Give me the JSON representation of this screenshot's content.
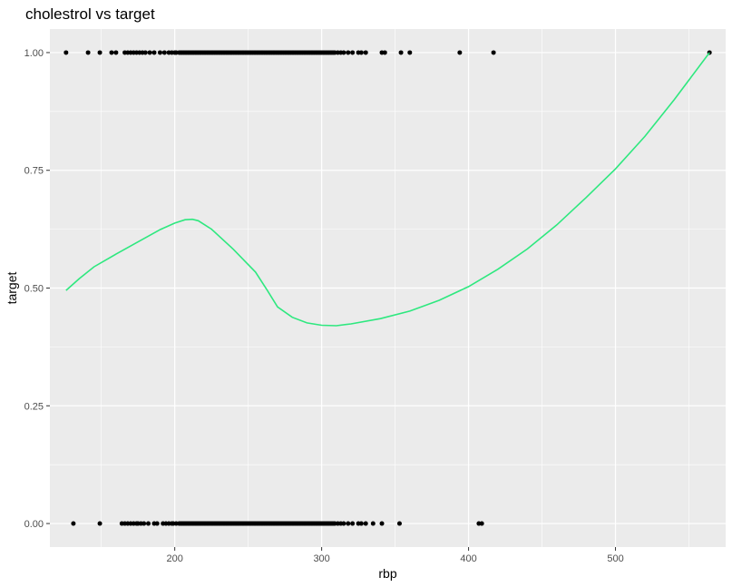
{
  "chart_data": {
    "type": "scatter",
    "title": "cholestrol vs target",
    "xlabel": "rbp",
    "ylabel": "target",
    "xlim": [
      115,
      575
    ],
    "ylim": [
      -0.05,
      1.05
    ],
    "x_ticks": [
      200,
      300,
      400,
      500
    ],
    "x_minor_ticks": [
      150,
      250,
      350,
      450,
      550
    ],
    "y_ticks": [
      0.0,
      0.25,
      0.5,
      0.75,
      1.0
    ],
    "y_tick_labels": [
      "0.00",
      "0.25",
      "0.50",
      "0.75",
      "1.00"
    ],
    "y_minor_ticks": [
      0.125,
      0.375,
      0.625,
      0.875
    ],
    "grid": true,
    "panel_color": "#ebebeb",
    "grid_color": "#ffffff",
    "point_color": "#000000",
    "smooth_color": "#2ee87f",
    "points_target_1": [
      126,
      141,
      149,
      157,
      160,
      166,
      168,
      170,
      172,
      174,
      176,
      178,
      180,
      183,
      186,
      190,
      193,
      196,
      198,
      200,
      201,
      203,
      204,
      205,
      206,
      207,
      208,
      209,
      210,
      211,
      212,
      213,
      214,
      215,
      216,
      217,
      218,
      219,
      220,
      221,
      222,
      223,
      224,
      225,
      226,
      227,
      228,
      229,
      230,
      231,
      232,
      233,
      234,
      235,
      236,
      237,
      238,
      239,
      240,
      241,
      242,
      243,
      244,
      245,
      246,
      247,
      248,
      249,
      250,
      251,
      252,
      253,
      254,
      255,
      256,
      257,
      258,
      259,
      260,
      261,
      262,
      263,
      264,
      265,
      266,
      267,
      268,
      269,
      270,
      271,
      272,
      273,
      274,
      275,
      276,
      277,
      278,
      279,
      280,
      281,
      282,
      283,
      284,
      285,
      286,
      287,
      288,
      289,
      290,
      291,
      292,
      293,
      294,
      295,
      296,
      297,
      298,
      299,
      300,
      301,
      302,
      303,
      304,
      305,
      306,
      307,
      308,
      309,
      311,
      313,
      315,
      318,
      321,
      325,
      327,
      330,
      341,
      343,
      354,
      360,
      394,
      417,
      564
    ],
    "points_target_0": [
      131,
      149,
      164,
      166,
      168,
      170,
      172,
      174,
      175,
      177,
      179,
      182,
      186,
      188,
      192,
      194,
      196,
      198,
      199,
      201,
      203,
      204,
      205,
      206,
      207,
      208,
      209,
      210,
      211,
      212,
      213,
      214,
      215,
      216,
      217,
      218,
      219,
      220,
      221,
      222,
      223,
      224,
      225,
      226,
      227,
      228,
      229,
      230,
      231,
      232,
      233,
      234,
      235,
      236,
      237,
      238,
      239,
      240,
      241,
      242,
      243,
      244,
      245,
      246,
      247,
      248,
      249,
      250,
      251,
      252,
      253,
      254,
      255,
      256,
      257,
      258,
      259,
      260,
      261,
      262,
      263,
      264,
      265,
      266,
      267,
      268,
      269,
      270,
      271,
      272,
      273,
      274,
      275,
      276,
      277,
      278,
      279,
      280,
      281,
      282,
      283,
      284,
      285,
      286,
      287,
      288,
      289,
      290,
      291,
      292,
      293,
      294,
      295,
      296,
      297,
      298,
      299,
      300,
      301,
      302,
      303,
      304,
      305,
      306,
      307,
      308,
      309,
      311,
      313,
      315,
      318,
      321,
      325,
      327,
      330,
      335,
      341,
      353,
      407,
      409
    ],
    "smooth_line": [
      [
        126,
        0.495
      ],
      [
        135,
        0.52
      ],
      [
        145,
        0.545
      ],
      [
        160,
        0.572
      ],
      [
        175,
        0.598
      ],
      [
        190,
        0.624
      ],
      [
        200,
        0.638
      ],
      [
        207,
        0.645
      ],
      [
        212,
        0.646
      ],
      [
        216,
        0.643
      ],
      [
        225,
        0.625
      ],
      [
        240,
        0.582
      ],
      [
        255,
        0.534
      ],
      [
        263,
        0.495
      ],
      [
        270,
        0.46
      ],
      [
        280,
        0.438
      ],
      [
        290,
        0.426
      ],
      [
        300,
        0.421
      ],
      [
        310,
        0.42
      ],
      [
        320,
        0.424
      ],
      [
        340,
        0.435
      ],
      [
        360,
        0.451
      ],
      [
        380,
        0.474
      ],
      [
        400,
        0.503
      ],
      [
        420,
        0.54
      ],
      [
        440,
        0.583
      ],
      [
        460,
        0.634
      ],
      [
        480,
        0.692
      ],
      [
        500,
        0.753
      ],
      [
        520,
        0.822
      ],
      [
        540,
        0.9
      ],
      [
        564,
        1.0
      ]
    ]
  }
}
